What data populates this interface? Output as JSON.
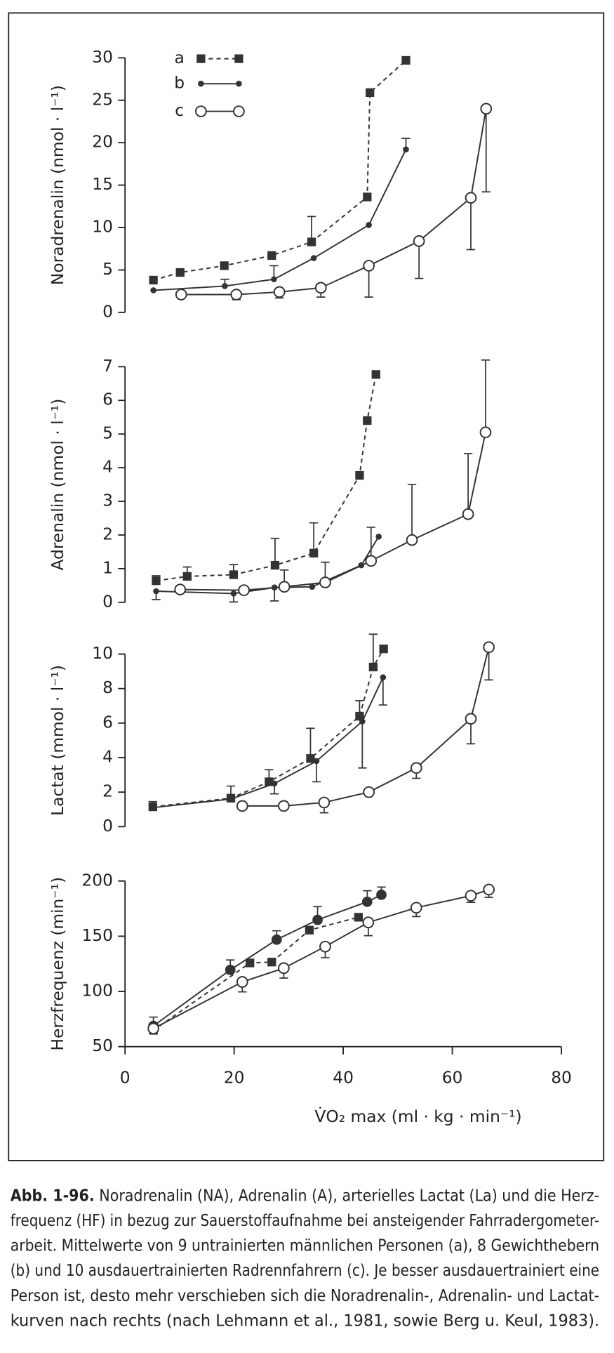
{
  "chart_data": [
    {
      "type": "line",
      "ylabel": "Noradrenalin (nmol · l⁻¹)",
      "xlim": [
        0,
        80
      ],
      "ylim": [
        0,
        30
      ],
      "yticks": [
        0,
        5,
        10,
        15,
        20,
        25,
        30
      ],
      "legend": "upper left",
      "series": [
        {
          "name": "a",
          "color": "#333333",
          "marker": "square",
          "dashed": true,
          "error_side": "up",
          "x": [
            5.2,
            10.1,
            18.2,
            26.9,
            34.2,
            44.4,
            44.9,
            51.5
          ],
          "values": [
            3.8,
            4.7,
            5.5,
            6.7,
            8.3,
            13.6,
            25.9,
            29.7
          ],
          "errors": [
            null,
            null,
            null,
            null,
            3,
            null,
            null,
            null
          ]
        },
        {
          "name": "b",
          "color": "#333333",
          "marker": "dot",
          "dashed": false,
          "error_side": "up",
          "x": [
            5.2,
            18.3,
            27.3,
            34.6,
            44.7,
            51.5
          ],
          "values": [
            2.6,
            3.1,
            3.9,
            6.4,
            10.3,
            19.2
          ],
          "errors": [
            null,
            0.8,
            1.6,
            null,
            null,
            1.3
          ]
        },
        {
          "name": "c",
          "color": "#333333",
          "marker": "circle",
          "dashed": false,
          "error_side": "down",
          "x": [
            10.3,
            20.4,
            28.3,
            35.9,
            44.7,
            53.9,
            63.4,
            66.2
          ],
          "values": [
            2.1,
            2.1,
            2.4,
            2.9,
            5.5,
            8.4,
            13.5,
            24.0
          ],
          "errors": [
            null,
            0.6,
            0.7,
            1.1,
            3.7,
            4.4,
            6.1,
            9.8
          ]
        }
      ]
    },
    {
      "type": "line",
      "ylabel": "Adrenalin (nmol · l⁻¹)",
      "xlim": [
        0,
        80
      ],
      "ylim": [
        0,
        7
      ],
      "yticks": [
        0,
        1,
        2,
        3,
        4,
        5,
        6,
        7
      ],
      "series": [
        {
          "color": "#333333",
          "marker": "square",
          "dashed": true,
          "error_side": "up",
          "x": [
            5.7,
            11.4,
            19.9,
            27.5,
            34.6,
            43,
            44.4,
            46
          ],
          "values": [
            0.64,
            0.77,
            0.82,
            1.1,
            1.46,
            3.77,
            5.4,
            6.77
          ],
          "errors": [
            0.15,
            0.28,
            0.3,
            0.8,
            0.9,
            null,
            null,
            null
          ]
        },
        {
          "color": "#333333",
          "marker": "dot",
          "dashed": false,
          "error_side": "down",
          "x": [
            5.7,
            19.9,
            27.4,
            34.3,
            43.3,
            46.5
          ],
          "values": [
            0.33,
            0.26,
            0.44,
            0.46,
            1.1,
            1.95
          ],
          "errors": [
            0.25,
            0.25,
            0.4,
            null,
            null,
            null
          ]
        },
        {
          "color": "#333333",
          "marker": "circle",
          "dashed": false,
          "error_side": "up",
          "x": [
            10.1,
            21.8,
            29.2,
            36.7,
            45.1,
            52.6,
            62.9,
            66.1
          ],
          "values": [
            0.38,
            0.36,
            0.46,
            0.59,
            1.23,
            1.85,
            2.62,
            5.05
          ],
          "errors": [
            null,
            null,
            0.5,
            0.6,
            1.0,
            1.65,
            1.8,
            2.15
          ]
        }
      ]
    },
    {
      "type": "line",
      "ylabel": "Lactat (mmol · l⁻¹)",
      "xlim": [
        0,
        80
      ],
      "ylim": [
        0,
        10
      ],
      "yticks": [
        0,
        2,
        4,
        6,
        8,
        10
      ],
      "series": [
        {
          "color": "#333333",
          "marker": "square",
          "dashed": true,
          "error_side": "up",
          "x": [
            5.1,
            19.4,
            26.4,
            34,
            43,
            45.5,
            47.4
          ],
          "values": [
            1.15,
            1.65,
            2.6,
            3.95,
            6.4,
            9.25,
            10.3
          ],
          "errors": [
            0.3,
            0.7,
            0.7,
            1.75,
            0.9,
            1.9,
            null
          ]
        },
        {
          "color": "#333333",
          "marker": "dot",
          "dashed": false,
          "error_side": "down",
          "x": [
            5.1,
            19.4,
            27.4,
            35.1,
            43.5,
            47.3
          ],
          "values": [
            1.1,
            1.6,
            2.5,
            3.8,
            6.1,
            8.65
          ],
          "errors": [
            null,
            null,
            0.6,
            1.2,
            2.7,
            1.6
          ]
        },
        {
          "color": "#333333",
          "marker": "circle",
          "dashed": false,
          "error_side": "down",
          "x": [
            21.5,
            29.1,
            36.5,
            44.7,
            53.4,
            63.4,
            66.7
          ],
          "values": [
            1.2,
            1.2,
            1.4,
            2.0,
            3.4,
            6.25,
            10.4
          ],
          "errors": [
            null,
            null,
            0.6,
            null,
            0.6,
            1.45,
            1.9
          ]
        }
      ]
    },
    {
      "type": "line",
      "ylabel": "Herzfrequenz (min⁻¹)",
      "xlabel": "V̇O₂ max (ml · kg · min⁻¹)",
      "xlim": [
        0,
        80
      ],
      "xticks": [
        0,
        20,
        40,
        60,
        80
      ],
      "ylim": [
        50,
        200
      ],
      "yticks": [
        50,
        100,
        150,
        200
      ],
      "series": [
        {
          "color": "#333333",
          "marker": "square",
          "dashed": true,
          "error_side": "up",
          "x": [
            5.2,
            22.9,
            26.9,
            33.8,
            42.8
          ],
          "values": [
            64.8,
            125.8,
            126.6,
            155.5,
            167.2
          ],
          "errors": [
            null,
            null,
            null,
            null,
            null
          ]
        },
        {
          "color": "#333333",
          "marker": "disc",
          "dashed": false,
          "error_side": "up",
          "x": [
            5.2,
            19.3,
            27.8,
            35.3,
            44.4,
            47
          ],
          "values": [
            68.8,
            119.5,
            146.9,
            164.8,
            181.2,
            187.5
          ],
          "errors": [
            8,
            9,
            8,
            12,
            10,
            7
          ]
        },
        {
          "color": "#333333",
          "marker": "circle",
          "dashed": false,
          "error_side": "down",
          "x": [
            5.2,
            21.5,
            29.1,
            36.7,
            44.6,
            53.4,
            63.4,
            66.7
          ],
          "values": [
            66.4,
            108.6,
            121.1,
            140.6,
            162.5,
            175.8,
            186.7,
            192.2
          ],
          "errors": [
            null,
            9,
            9,
            10,
            12,
            8,
            6,
            7
          ]
        }
      ]
    }
  ],
  "caption": {
    "label": "Abb. 1-96.",
    "lines": [
      "Noradrenalin (NA), Adrenalin (A), arterielles Lactat (La) und die Herz-",
      "frequenz (HF) in bezug zur Sauerstoffaufnahme bei ansteigender Fahrradergometer-",
      "arbeit. Mittelwerte von 9 untrainierten männlichen Personen (a), 8 Gewichthebern",
      "(b) und 10 ausdauertrainierten Radrennfahrern (c). Je besser ausdauertrainiert eine",
      "Person ist, desto mehr verschieben sich die Noradrenalin-, Adrenalin- und Lactat-",
      "kurven nach rechts (nach Lehmann et al., 1981, sowie Berg u. Keul, 1983)."
    ]
  }
}
